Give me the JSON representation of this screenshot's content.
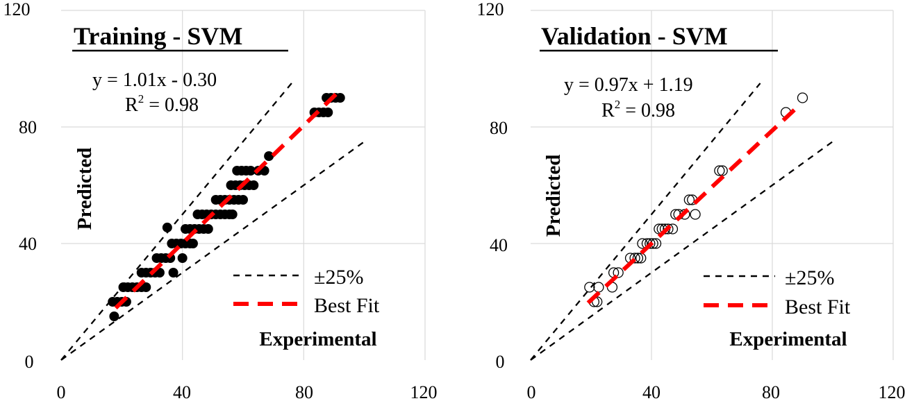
{
  "chart_data": [
    {
      "type": "scatter",
      "title": "Training - SVM",
      "xlabel": "Experimental",
      "ylabel": "Predicted",
      "xlim": [
        0,
        120
      ],
      "ylim": [
        0,
        120
      ],
      "x_ticks": [
        "0",
        "40",
        "80",
        "120"
      ],
      "y_ticks": [
        "0",
        "40",
        "80",
        "120"
      ],
      "grid": true,
      "equation": "y = 1.01x - 0.30",
      "r2_label": "R",
      "r2_sup": "2",
      "r2_value": " = 0.98",
      "legend": {
        "upper": "±25%",
        "fit": "Best Fit",
        "position": "bottom-right"
      },
      "marker": "filled",
      "fit": {
        "slope": 1.01,
        "intercept": -0.3,
        "x_range": [
          18,
          92
        ]
      },
      "bounds": {
        "upper_factor": 1.25,
        "lower_factor": 0.75,
        "upper_x_end": 76,
        "lower_x_end": 100
      },
      "points": [
        [
          17.5,
          15
        ],
        [
          17,
          20
        ],
        [
          18.5,
          20
        ],
        [
          20,
          20
        ],
        [
          21.5,
          20
        ],
        [
          20.5,
          25
        ],
        [
          22,
          25
        ],
        [
          23.5,
          25
        ],
        [
          25,
          25
        ],
        [
          26.5,
          25
        ],
        [
          28,
          25
        ],
        [
          26.5,
          30
        ],
        [
          28,
          30
        ],
        [
          29.5,
          30
        ],
        [
          31,
          30
        ],
        [
          32.5,
          30
        ],
        [
          37,
          30
        ],
        [
          31.5,
          35
        ],
        [
          33,
          35
        ],
        [
          34.5,
          35
        ],
        [
          36,
          35
        ],
        [
          40,
          35
        ],
        [
          36.5,
          40
        ],
        [
          38,
          40
        ],
        [
          39.5,
          40
        ],
        [
          41,
          40
        ],
        [
          42.5,
          40
        ],
        [
          43.5,
          40
        ],
        [
          41,
          45
        ],
        [
          42.5,
          45
        ],
        [
          44,
          45
        ],
        [
          45.5,
          45
        ],
        [
          47,
          45
        ],
        [
          48.5,
          45
        ],
        [
          35,
          45.5
        ],
        [
          45,
          50
        ],
        [
          46.5,
          50
        ],
        [
          48,
          50
        ],
        [
          49.5,
          50
        ],
        [
          51,
          50
        ],
        [
          52.5,
          50
        ],
        [
          54,
          50
        ],
        [
          55.5,
          50
        ],
        [
          56.5,
          50
        ],
        [
          51,
          55
        ],
        [
          52.5,
          55
        ],
        [
          54,
          55
        ],
        [
          55.5,
          55
        ],
        [
          57,
          55
        ],
        [
          58.5,
          55
        ],
        [
          60,
          55
        ],
        [
          56,
          60
        ],
        [
          57.5,
          60
        ],
        [
          59,
          60
        ],
        [
          60.5,
          60
        ],
        [
          62,
          60
        ],
        [
          63.5,
          60
        ],
        [
          58,
          65
        ],
        [
          59.5,
          65
        ],
        [
          61,
          65
        ],
        [
          62.5,
          65
        ],
        [
          65,
          65
        ],
        [
          67,
          65
        ],
        [
          68.5,
          70
        ],
        [
          83.5,
          85
        ],
        [
          85,
          85
        ],
        [
          86.5,
          85
        ],
        [
          88,
          85
        ],
        [
          87.5,
          90
        ],
        [
          89,
          90
        ],
        [
          90.5,
          90
        ],
        [
          92,
          90
        ]
      ]
    },
    {
      "type": "scatter",
      "title": "Validation - SVM",
      "xlabel": "Experimental",
      "ylabel": "Predicted",
      "xlim": [
        0,
        120
      ],
      "ylim": [
        0,
        120
      ],
      "x_ticks": [
        "0",
        "40",
        "80",
        "120"
      ],
      "y_ticks": [
        "0",
        "40",
        "80",
        "120"
      ],
      "grid": true,
      "equation": "y = 0.97x + 1.19",
      "r2_label": "R",
      "r2_sup": "2",
      "r2_value": " = 0.98",
      "legend": {
        "upper": "±25%",
        "fit": "Best Fit",
        "position": "bottom-right"
      },
      "marker": "open",
      "fit": {
        "slope": 0.97,
        "intercept": 1.19,
        "x_range": [
          19,
          88
        ]
      },
      "bounds": {
        "upper_factor": 1.25,
        "lower_factor": 0.75,
        "upper_x_end": 76,
        "lower_x_end": 100
      },
      "points": [
        [
          19.5,
          25
        ],
        [
          21,
          20
        ],
        [
          22,
          20
        ],
        [
          22.5,
          25
        ],
        [
          27,
          25
        ],
        [
          27.5,
          30
        ],
        [
          29,
          30
        ],
        [
          33,
          35
        ],
        [
          34.5,
          35
        ],
        [
          35.5,
          35
        ],
        [
          36.5,
          35
        ],
        [
          37,
          40
        ],
        [
          38.5,
          40
        ],
        [
          39.5,
          40
        ],
        [
          40.5,
          40
        ],
        [
          41.5,
          40
        ],
        [
          42.5,
          45
        ],
        [
          43.5,
          45
        ],
        [
          44.5,
          45
        ],
        [
          45.5,
          45
        ],
        [
          47,
          45
        ],
        [
          48,
          50
        ],
        [
          49,
          50
        ],
        [
          51,
          50
        ],
        [
          52.5,
          55
        ],
        [
          53.5,
          55
        ],
        [
          54.5,
          50
        ],
        [
          62.5,
          65
        ],
        [
          63.5,
          65
        ],
        [
          84.5,
          85
        ],
        [
          90,
          90
        ]
      ]
    }
  ]
}
